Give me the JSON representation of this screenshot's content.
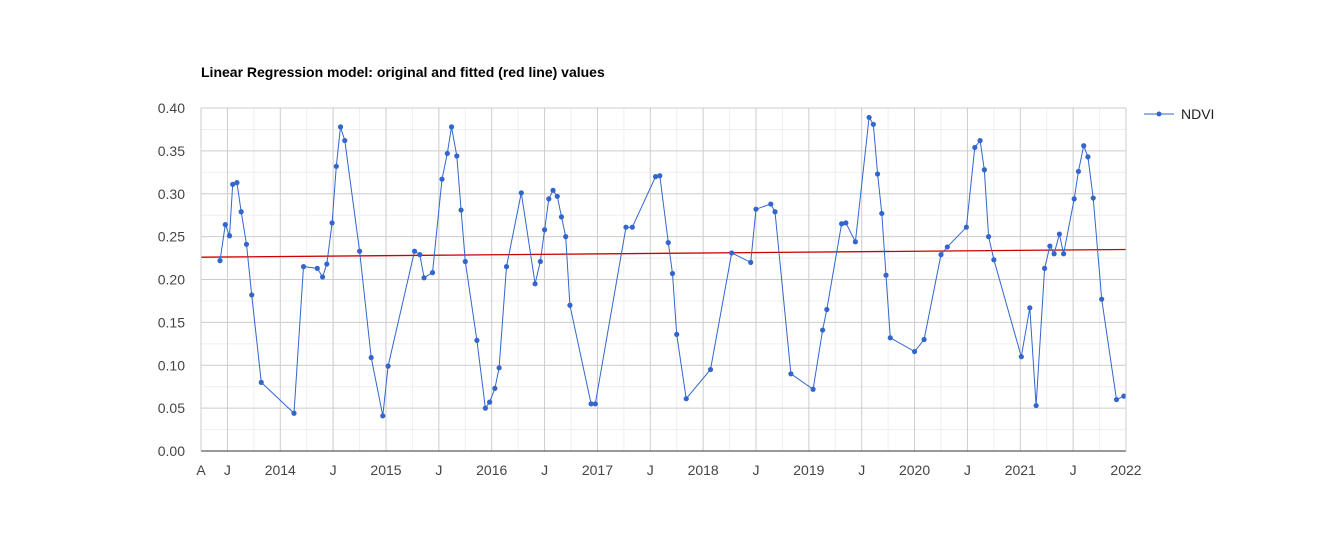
{
  "chart_data": {
    "type": "line",
    "title": "Linear Regression model: original and fitted (red line) values",
    "xlabel": "",
    "ylabel": "",
    "ylim": [
      0,
      0.4
    ],
    "xlim": [
      2013.25,
      2022.0
    ],
    "y_ticks": [
      "0.00",
      "0.05",
      "0.10",
      "0.15",
      "0.20",
      "0.25",
      "0.30",
      "0.35",
      "0.40"
    ],
    "x_ticks": [
      {
        "label": "A",
        "x": 2013.25
      },
      {
        "label": "J",
        "x": 2013.5
      },
      {
        "label": "2014",
        "x": 2014.0
      },
      {
        "label": "J",
        "x": 2014.5
      },
      {
        "label": "2015",
        "x": 2015.0
      },
      {
        "label": "J",
        "x": 2015.5
      },
      {
        "label": "2016",
        "x": 2016.0
      },
      {
        "label": "J",
        "x": 2016.5
      },
      {
        "label": "2017",
        "x": 2017.0
      },
      {
        "label": "J",
        "x": 2017.5
      },
      {
        "label": "2018",
        "x": 2018.0
      },
      {
        "label": "J",
        "x": 2018.5
      },
      {
        "label": "2019",
        "x": 2019.0
      },
      {
        "label": "J",
        "x": 2019.5
      },
      {
        "label": "2020",
        "x": 2020.0
      },
      {
        "label": "J",
        "x": 2020.5
      },
      {
        "label": "2021",
        "x": 2021.0
      },
      {
        "label": "J",
        "x": 2021.5
      },
      {
        "label": "2022",
        "x": 2022.0
      }
    ],
    "legend": {
      "position": "right",
      "entries": [
        "NDVI"
      ]
    },
    "series": [
      {
        "name": "NDVI",
        "color": "#3366cc",
        "points": [
          [
            2013.43,
            0.222
          ],
          [
            2013.48,
            0.264
          ],
          [
            2013.52,
            0.251
          ],
          [
            2013.55,
            0.311
          ],
          [
            2013.59,
            0.313
          ],
          [
            2013.63,
            0.279
          ],
          [
            2013.68,
            0.241
          ],
          [
            2013.73,
            0.182
          ],
          [
            2013.82,
            0.08
          ],
          [
            2014.13,
            0.044
          ],
          [
            2014.22,
            0.215
          ],
          [
            2014.35,
            0.213
          ],
          [
            2014.4,
            0.203
          ],
          [
            2014.44,
            0.218
          ],
          [
            2014.49,
            0.266
          ],
          [
            2014.53,
            0.332
          ],
          [
            2014.57,
            0.378
          ],
          [
            2014.61,
            0.362
          ],
          [
            2014.75,
            0.233
          ],
          [
            2014.86,
            0.109
          ],
          [
            2014.97,
            0.041
          ],
          [
            2015.02,
            0.099
          ],
          [
            2015.27,
            0.233
          ],
          [
            2015.32,
            0.229
          ],
          [
            2015.36,
            0.202
          ],
          [
            2015.44,
            0.208
          ],
          [
            2015.53,
            0.317
          ],
          [
            2015.58,
            0.347
          ],
          [
            2015.62,
            0.378
          ],
          [
            2015.67,
            0.344
          ],
          [
            2015.71,
            0.281
          ],
          [
            2015.75,
            0.221
          ],
          [
            2015.86,
            0.129
          ],
          [
            2015.94,
            0.05
          ],
          [
            2015.98,
            0.057
          ],
          [
            2016.03,
            0.073
          ],
          [
            2016.07,
            0.097
          ],
          [
            2016.14,
            0.215
          ],
          [
            2016.28,
            0.301
          ],
          [
            2016.41,
            0.195
          ],
          [
            2016.46,
            0.221
          ],
          [
            2016.5,
            0.258
          ],
          [
            2016.54,
            0.294
          ],
          [
            2016.58,
            0.304
          ],
          [
            2016.62,
            0.297
          ],
          [
            2016.66,
            0.273
          ],
          [
            2016.7,
            0.25
          ],
          [
            2016.74,
            0.17
          ],
          [
            2016.94,
            0.055
          ],
          [
            2016.98,
            0.055
          ],
          [
            2017.27,
            0.261
          ],
          [
            2017.33,
            0.261
          ],
          [
            2017.55,
            0.32
          ],
          [
            2017.59,
            0.321
          ],
          [
            2017.67,
            0.243
          ],
          [
            2017.71,
            0.207
          ],
          [
            2017.75,
            0.136
          ],
          [
            2017.84,
            0.061
          ],
          [
            2018.07,
            0.095
          ],
          [
            2018.27,
            0.231
          ],
          [
            2018.45,
            0.22
          ],
          [
            2018.5,
            0.282
          ],
          [
            2018.64,
            0.288
          ],
          [
            2018.68,
            0.279
          ],
          [
            2018.83,
            0.09
          ],
          [
            2019.04,
            0.072
          ],
          [
            2019.13,
            0.141
          ],
          [
            2019.17,
            0.165
          ],
          [
            2019.31,
            0.265
          ],
          [
            2019.35,
            0.266
          ],
          [
            2019.44,
            0.244
          ],
          [
            2019.57,
            0.389
          ],
          [
            2019.61,
            0.381
          ],
          [
            2019.65,
            0.323
          ],
          [
            2019.69,
            0.277
          ],
          [
            2019.73,
            0.205
          ],
          [
            2019.77,
            0.132
          ],
          [
            2020.0,
            0.116
          ],
          [
            2020.09,
            0.13
          ],
          [
            2020.25,
            0.229
          ],
          [
            2020.31,
            0.238
          ],
          [
            2020.49,
            0.261
          ],
          [
            2020.57,
            0.354
          ],
          [
            2020.62,
            0.362
          ],
          [
            2020.66,
            0.328
          ],
          [
            2020.7,
            0.25
          ],
          [
            2020.75,
            0.223
          ],
          [
            2021.01,
            0.11
          ],
          [
            2021.09,
            0.167
          ],
          [
            2021.15,
            0.053
          ],
          [
            2021.23,
            0.213
          ],
          [
            2021.28,
            0.239
          ],
          [
            2021.32,
            0.23
          ],
          [
            2021.37,
            0.253
          ],
          [
            2021.41,
            0.23
          ],
          [
            2021.51,
            0.294
          ],
          [
            2021.55,
            0.326
          ],
          [
            2021.6,
            0.356
          ],
          [
            2021.64,
            0.343
          ],
          [
            2021.69,
            0.295
          ],
          [
            2021.77,
            0.177
          ],
          [
            2021.91,
            0.06
          ],
          [
            2021.98,
            0.064
          ]
        ]
      }
    ],
    "trendline": {
      "name": "fitted",
      "color": "#cc0000",
      "start": [
        2013.25,
        0.226
      ],
      "end": [
        2022.0,
        0.235
      ]
    }
  }
}
